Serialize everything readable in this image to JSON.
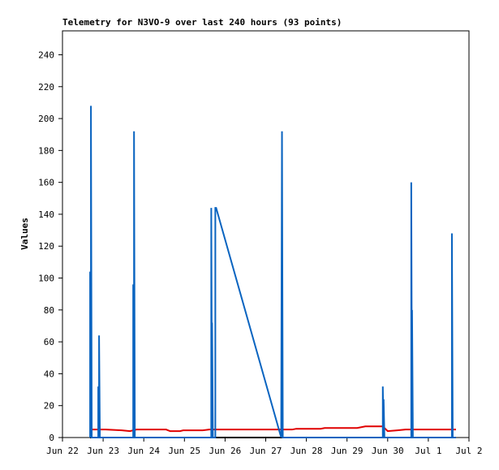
{
  "chart_data": {
    "type": "line",
    "title": "Telemetry for N3VO-9 over last 240 hours (93 points)",
    "y_label": "Values",
    "xlim": [
      0,
      10
    ],
    "xticks": [
      {
        "value": 0,
        "label": "Jun 22"
      },
      {
        "value": 1,
        "label": "Jun 23"
      },
      {
        "value": 2,
        "label": "Jun 24"
      },
      {
        "value": 3,
        "label": "Jun 25"
      },
      {
        "value": 4,
        "label": "Jun 26"
      },
      {
        "value": 5,
        "label": "Jun 27"
      },
      {
        "value": 6,
        "label": "Jun 28"
      },
      {
        "value": 7,
        "label": "Jun 29"
      },
      {
        "value": 8,
        "label": "Jun 30"
      },
      {
        "value": 9,
        "label": "Jul 1"
      },
      {
        "value": 10,
        "label": "Jul 2"
      }
    ],
    "ylim": [
      0,
      255
    ],
    "yticks": [
      0,
      20,
      40,
      60,
      80,
      100,
      120,
      140,
      160,
      180,
      200,
      220,
      240
    ],
    "series": [
      {
        "color": "#000000",
        "x": [
          0.68,
          9.68
        ],
        "values": [
          0,
          0
        ]
      },
      {
        "color": "#e00000",
        "x": [
          0.68,
          1.06,
          1.46,
          1.66,
          1.82,
          2.55,
          2.65,
          2.89,
          2.97,
          3.45,
          3.61,
          5.65,
          5.75,
          6.35,
          6.45,
          7.25,
          7.45,
          7.88,
          8.0,
          8.24,
          8.44,
          9.68
        ],
        "values": [
          5,
          5,
          4.5,
          4,
          5,
          5,
          4,
          4,
          4.5,
          4.5,
          5,
          5,
          5.5,
          5.5,
          6,
          6,
          7,
          7,
          4,
          4.5,
          5,
          5
        ]
      },
      {
        "color": "#0a64c0",
        "x": [
          0.68,
          0.68,
          0.7,
          0.7,
          0.72,
          0.88,
          0.88,
          0.9,
          0.9,
          0.92,
          1.74,
          1.74,
          1.76,
          1.76,
          1.78,
          3.66,
          3.66,
          3.68,
          3.68,
          3.7,
          3.76,
          3.76,
          3.78,
          5.38,
          5.4,
          5.42,
          7.88,
          7.88,
          7.9,
          7.9,
          7.92,
          8.58,
          8.58,
          8.6,
          8.6,
          8.62,
          9.58,
          9.58,
          9.6,
          9.68
        ],
        "values": [
          0,
          104,
          0,
          208,
          0,
          0,
          32,
          0,
          64,
          0,
          0,
          96,
          0,
          192,
          0,
          0,
          144,
          0,
          72,
          0,
          0,
          144,
          144,
          0,
          192,
          0,
          0,
          32,
          0,
          24,
          0,
          0,
          160,
          0,
          80,
          0,
          0,
          128,
          0,
          0
        ]
      }
    ]
  }
}
